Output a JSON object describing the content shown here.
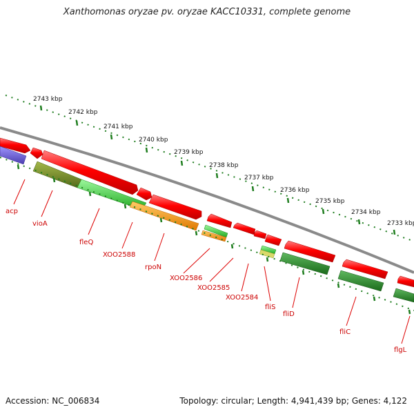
{
  "title": "Xanthomonas oryzae pv. oryzae KACC10331, complete genome",
  "accession": "Accession: NC_006834",
  "topology": "Topology: circular; Length: 4,941,439 bp; Genes: 4,122",
  "ticks": [
    "2743 kbp",
    "2742 kbp",
    "2741 kbp",
    "2740 kbp",
    "2739 kbp",
    "2738 kbp",
    "2737 kbp",
    "2736 kbp",
    "2735 kbp",
    "2734 kbp",
    "2733 kbp"
  ],
  "genes": [
    "acp",
    "vioA",
    "fleQ",
    "XOO2588",
    "rpoN",
    "XOO2586",
    "XOO2585",
    "XOO2584",
    "fliS",
    "fliD",
    "fliC",
    "flgL"
  ],
  "colors": {
    "backbone": "#888888",
    "red_gene": "#ff0000",
    "blue_gene": "#6a5acd",
    "olive_gene": "#6b8e23",
    "green_gene": "#33cc33",
    "orange_gene": "#ff9900",
    "darkgreen_gene": "#228b22",
    "tick_green": "#1e7d1e",
    "label_red": "#cc0000"
  }
}
